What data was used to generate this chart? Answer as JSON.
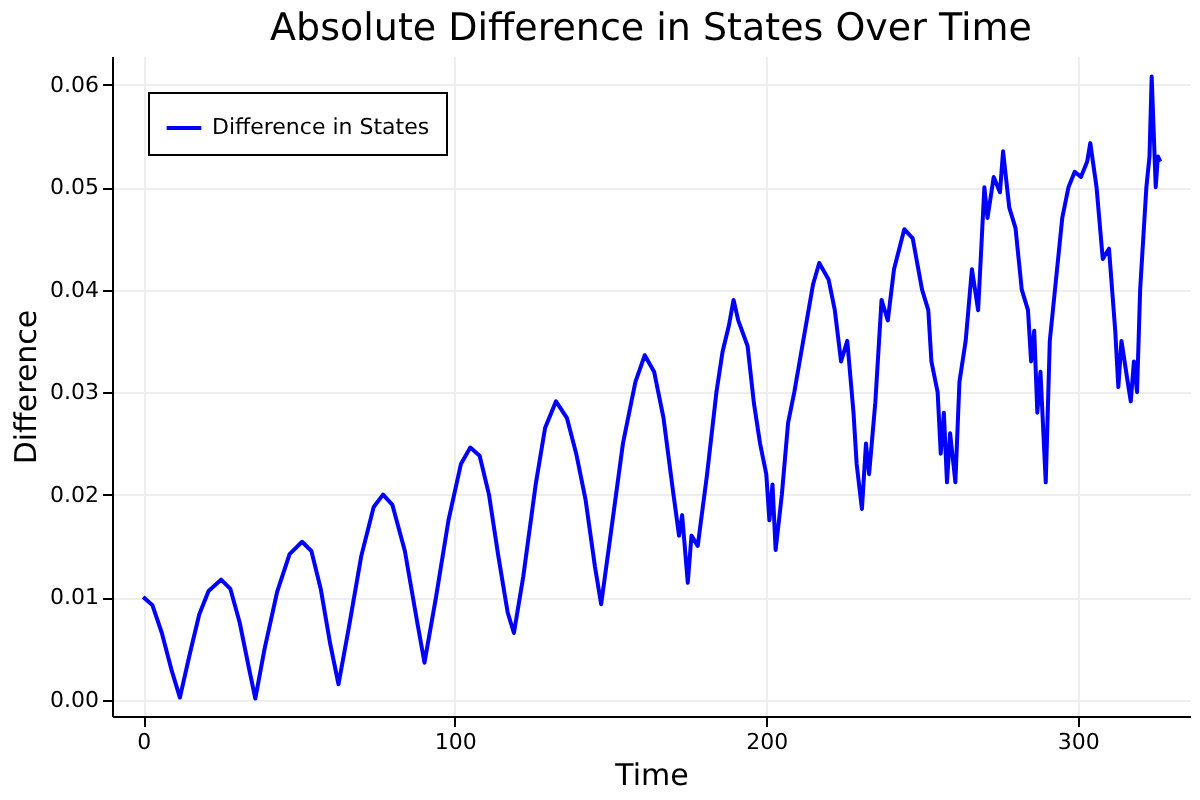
{
  "chart_data": {
    "type": "line",
    "title": "Absolute Difference in States Over Time",
    "xlabel": "Time",
    "ylabel": "Difference",
    "xlim": [
      -10,
      336
    ],
    "ylim": [
      -0.0016,
      0.0628
    ],
    "xticks": [
      0,
      100,
      200,
      300
    ],
    "yticks": [
      {
        "value": 0,
        "label": "0.00"
      },
      {
        "value": 0.01,
        "label": "0.01"
      },
      {
        "value": 0.02,
        "label": "0.02"
      },
      {
        "value": 0.03,
        "label": "0.03"
      },
      {
        "value": 0.04,
        "label": "0.04"
      },
      {
        "value": 0.05,
        "label": "0.05"
      },
      {
        "value": 0.06,
        "label": "0.06"
      }
    ],
    "grid": true,
    "legend": "top left",
    "line_style": "solid",
    "marker": "none",
    "series": [
      {
        "name": "Difference in States",
        "color": "#0000ff",
        "x": [
          0,
          3,
          6,
          9,
          11.8,
          15,
          18,
          21,
          25,
          28,
          31,
          34,
          36,
          39,
          43,
          47,
          51,
          54,
          57,
          60,
          62.7,
          66,
          70,
          74,
          77,
          80,
          84,
          88,
          90.3,
          94,
          98,
          102,
          105,
          108,
          111,
          114,
          117,
          119,
          122,
          126,
          129,
          132.5,
          136,
          139,
          142,
          145,
          147,
          150,
          154,
          158,
          161,
          164,
          167,
          170,
          172,
          173,
          174.8,
          176,
          178,
          181,
          184,
          186,
          188,
          189.5,
          191,
          194,
          196,
          198,
          200,
          201,
          202,
          203,
          205,
          207,
          209,
          211,
          213,
          215,
          217,
          220,
          222,
          224,
          226,
          228,
          229,
          230.7,
          232,
          233,
          235,
          237,
          239,
          241,
          244.3,
          247,
          250,
          252,
          253,
          255,
          256,
          257,
          258,
          259,
          260.7,
          262,
          264,
          266,
          268,
          270,
          271,
          273,
          275,
          276,
          278,
          280,
          282,
          284,
          285,
          286,
          287,
          288,
          289.7,
          291,
          293,
          295,
          297,
          299,
          301,
          303,
          304,
          306,
          308,
          310,
          312,
          313,
          314,
          316,
          317,
          318,
          319,
          320,
          322,
          323,
          323.7,
          325,
          325.7,
          326.5
        ],
        "values": [
          0.01,
          0.0092,
          0.0065,
          0.003,
          0.0002,
          0.0045,
          0.0083,
          0.0106,
          0.0117,
          0.0108,
          0.0075,
          0.003,
          0.0001,
          0.005,
          0.0105,
          0.0142,
          0.0154,
          0.0145,
          0.0108,
          0.0055,
          0.0015,
          0.007,
          0.014,
          0.0188,
          0.02,
          0.019,
          0.0145,
          0.0075,
          0.0036,
          0.01,
          0.0175,
          0.023,
          0.0246,
          0.0238,
          0.02,
          0.014,
          0.0085,
          0.0065,
          0.012,
          0.021,
          0.0265,
          0.0291,
          0.0275,
          0.024,
          0.0195,
          0.013,
          0.0093,
          0.016,
          0.025,
          0.031,
          0.0336,
          0.032,
          0.0275,
          0.0205,
          0.016,
          0.018,
          0.0114,
          0.016,
          0.015,
          0.022,
          0.03,
          0.034,
          0.0365,
          0.039,
          0.037,
          0.0345,
          0.029,
          0.025,
          0.022,
          0.0175,
          0.021,
          0.0146,
          0.02,
          0.027,
          0.03,
          0.0335,
          0.037,
          0.0405,
          0.0426,
          0.041,
          0.038,
          0.033,
          0.035,
          0.028,
          0.023,
          0.0186,
          0.025,
          0.022,
          0.029,
          0.039,
          0.037,
          0.042,
          0.0459,
          0.045,
          0.04,
          0.038,
          0.033,
          0.03,
          0.024,
          0.028,
          0.0212,
          0.026,
          0.0212,
          0.031,
          0.035,
          0.042,
          0.038,
          0.05,
          0.047,
          0.051,
          0.0495,
          0.0535,
          0.048,
          0.046,
          0.04,
          0.038,
          0.033,
          0.036,
          0.028,
          0.032,
          0.0212,
          0.035,
          0.041,
          0.047,
          0.05,
          0.0515,
          0.051,
          0.0525,
          0.0543,
          0.05,
          0.043,
          0.044,
          0.036,
          0.0305,
          0.035,
          0.031,
          0.0291,
          0.033,
          0.03,
          0.04,
          0.05,
          0.053,
          0.0608,
          0.05,
          0.053,
          0.0525
        ]
      }
    ]
  }
}
